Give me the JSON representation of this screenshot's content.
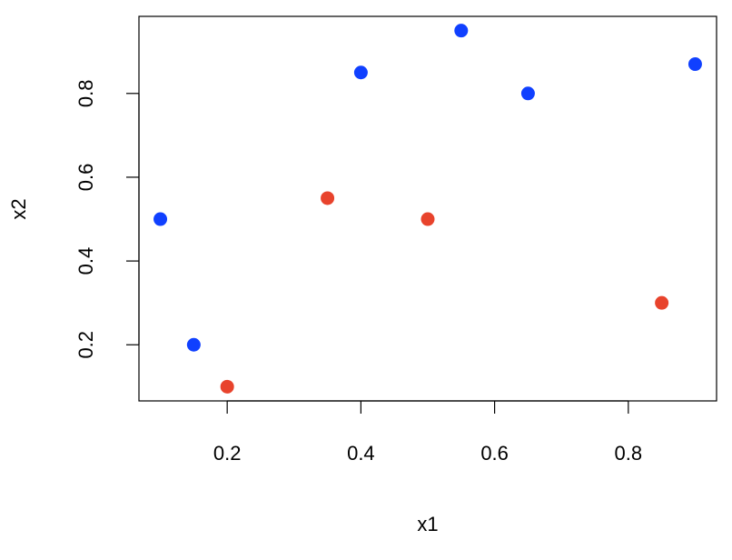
{
  "chart_data": {
    "type": "scatter",
    "x_label": "x1",
    "y_label": "x2",
    "series": [
      {
        "color": "#1040ff",
        "x": [
          0.1,
          0.15,
          0.4,
          0.55,
          0.65,
          0.9
        ],
        "values": [
          0.5,
          0.2,
          0.85,
          0.95,
          0.8,
          0.87
        ]
      },
      {
        "color": "#e8432c",
        "x": [
          0.2,
          0.35,
          0.5,
          0.85
        ],
        "values": [
          0.1,
          0.55,
          0.5,
          0.3
        ]
      }
    ],
    "xlim": [
      0.068,
      0.932
    ],
    "ylim": [
      0.066,
      0.984
    ],
    "xticks": [
      0.2,
      0.4,
      0.6,
      0.8
    ],
    "yticks": [
      0.2,
      0.4,
      0.6,
      0.8
    ],
    "grid": false
  }
}
